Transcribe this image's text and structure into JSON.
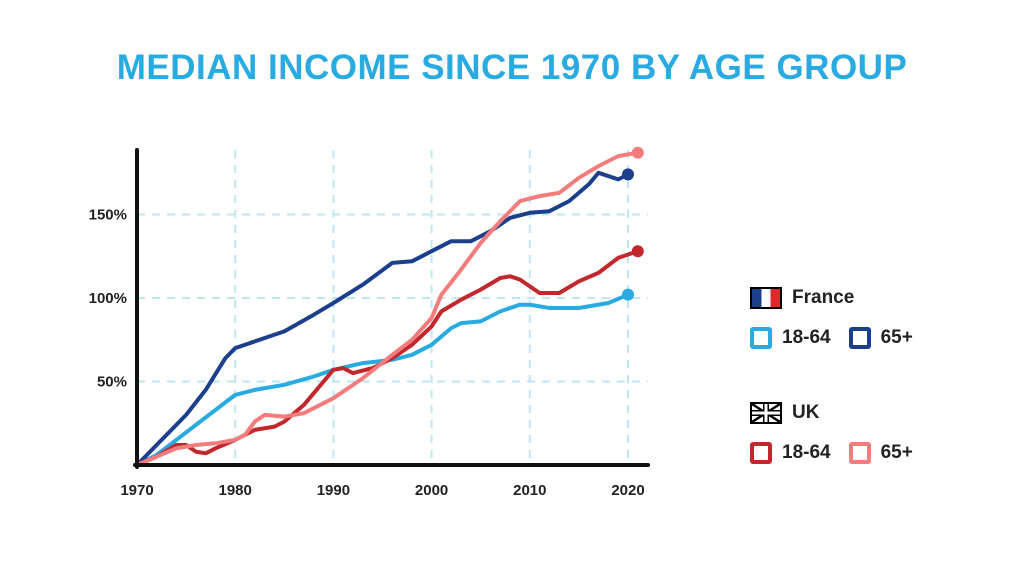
{
  "title": "MEDIAN INCOME SINCE 1970 BY AGE GROUP",
  "legend": {
    "france": {
      "country": "France",
      "flag_icon": "france-flag-icon",
      "entries": [
        {
          "label": "18-64",
          "color": "#29abe2"
        },
        {
          "label": "65+",
          "color": "#1c3f8c"
        }
      ]
    },
    "uk": {
      "country": "UK",
      "flag_icon": "uk-flag-icon",
      "entries": [
        {
          "label": "18-64",
          "color": "#c1272d"
        },
        {
          "label": "65+",
          "color": "#f47c7c"
        }
      ]
    }
  },
  "chart_data": {
    "type": "line",
    "title": "MEDIAN INCOME SINCE 1970 BY AGE GROUP",
    "xlabel": "",
    "ylabel": "",
    "xlim": [
      1970,
      2022
    ],
    "ylim": [
      0,
      190
    ],
    "x_ticks": [
      1970,
      1980,
      1990,
      2000,
      2010,
      2020
    ],
    "x_tick_labels": [
      "1970",
      "1980",
      "1990",
      "2000",
      "2010",
      "2020"
    ],
    "y_ticks": [
      50,
      100,
      150
    ],
    "y_tick_labels": [
      "50%",
      "100%",
      "150%"
    ],
    "grid": true,
    "legend_position": "right",
    "series": [
      {
        "name": "France 18-64",
        "color": "#29abe2",
        "end_marker": true,
        "points": [
          [
            1970,
            0
          ],
          [
            1972,
            6
          ],
          [
            1974,
            15
          ],
          [
            1976,
            24
          ],
          [
            1978,
            33
          ],
          [
            1980,
            42
          ],
          [
            1982,
            45
          ],
          [
            1985,
            48
          ],
          [
            1988,
            53
          ],
          [
            1990,
            57
          ],
          [
            1993,
            61
          ],
          [
            1996,
            63
          ],
          [
            1998,
            66
          ],
          [
            2000,
            72
          ],
          [
            2002,
            82
          ],
          [
            2003,
            85
          ],
          [
            2005,
            86
          ],
          [
            2007,
            92
          ],
          [
            2009,
            96
          ],
          [
            2010,
            96
          ],
          [
            2012,
            94
          ],
          [
            2015,
            94
          ],
          [
            2018,
            97
          ],
          [
            2020,
            102
          ]
        ]
      },
      {
        "name": "France 65+",
        "color": "#1c3f8c",
        "end_marker": true,
        "points": [
          [
            1970,
            0
          ],
          [
            1972,
            12
          ],
          [
            1975,
            30
          ],
          [
            1977,
            45
          ],
          [
            1979,
            64
          ],
          [
            1980,
            70
          ],
          [
            1982,
            74
          ],
          [
            1985,
            80
          ],
          [
            1988,
            90
          ],
          [
            1990,
            97
          ],
          [
            1993,
            108
          ],
          [
            1996,
            121
          ],
          [
            1998,
            122
          ],
          [
            2000,
            128
          ],
          [
            2002,
            134
          ],
          [
            2004,
            134
          ],
          [
            2006,
            140
          ],
          [
            2008,
            148
          ],
          [
            2010,
            151
          ],
          [
            2012,
            152
          ],
          [
            2014,
            158
          ],
          [
            2016,
            168
          ],
          [
            2017,
            175
          ],
          [
            2019,
            171
          ],
          [
            2020,
            174
          ]
        ]
      },
      {
        "name": "UK 18-64",
        "color": "#c1272d",
        "end_marker": true,
        "points": [
          [
            1970,
            0
          ],
          [
            1972,
            5
          ],
          [
            1974,
            12
          ],
          [
            1975,
            12
          ],
          [
            1976,
            8
          ],
          [
            1977,
            7
          ],
          [
            1978,
            10
          ],
          [
            1980,
            15
          ],
          [
            1982,
            21
          ],
          [
            1984,
            23
          ],
          [
            1985,
            26
          ],
          [
            1987,
            36
          ],
          [
            1989,
            50
          ],
          [
            1990,
            57
          ],
          [
            1991,
            58
          ],
          [
            1992,
            55
          ],
          [
            1994,
            58
          ],
          [
            1996,
            64
          ],
          [
            1998,
            72
          ],
          [
            2000,
            83
          ],
          [
            2001,
            92
          ],
          [
            2003,
            99
          ],
          [
            2005,
            105
          ],
          [
            2007,
            112
          ],
          [
            2008,
            113
          ],
          [
            2009,
            111
          ],
          [
            2011,
            103
          ],
          [
            2013,
            103
          ],
          [
            2015,
            110
          ],
          [
            2017,
            115
          ],
          [
            2019,
            124
          ],
          [
            2021,
            128
          ]
        ]
      },
      {
        "name": "UK 65+",
        "color": "#f47c7c",
        "end_marker": true,
        "points": [
          [
            1970,
            0
          ],
          [
            1972,
            5
          ],
          [
            1974,
            10
          ],
          [
            1976,
            12
          ],
          [
            1978,
            13
          ],
          [
            1980,
            15
          ],
          [
            1981,
            18
          ],
          [
            1982,
            26
          ],
          [
            1983,
            30
          ],
          [
            1985,
            29
          ],
          [
            1987,
            31
          ],
          [
            1990,
            40
          ],
          [
            1993,
            52
          ],
          [
            1996,
            66
          ],
          [
            1998,
            75
          ],
          [
            2000,
            88
          ],
          [
            2001,
            102
          ],
          [
            2003,
            117
          ],
          [
            2005,
            133
          ],
          [
            2007,
            146
          ],
          [
            2009,
            158
          ],
          [
            2011,
            161
          ],
          [
            2013,
            163
          ],
          [
            2015,
            172
          ],
          [
            2017,
            179
          ],
          [
            2019,
            185
          ],
          [
            2021,
            187
          ]
        ]
      }
    ]
  }
}
